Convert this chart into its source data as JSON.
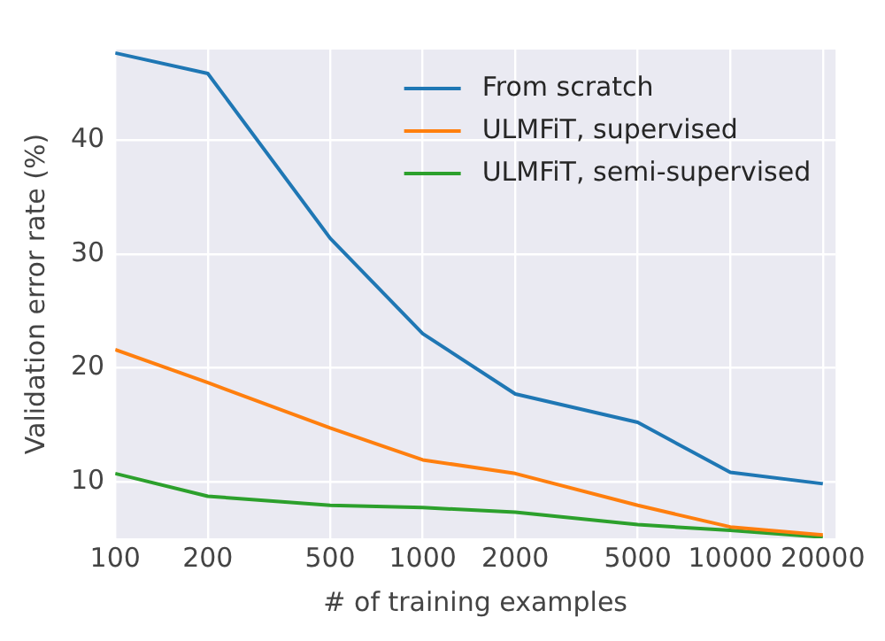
{
  "chart_data": {
    "type": "line",
    "xlabel": "# of training examples",
    "ylabel": "Validation error rate (%)",
    "x": [
      100,
      200,
      500,
      1000,
      2000,
      5000,
      10000,
      20000
    ],
    "series": [
      {
        "name": "From scratch",
        "color": "#1f77b4",
        "values": [
          47.7,
          45.9,
          31.4,
          23,
          17.7,
          15.2,
          10.8,
          9.8
        ]
      },
      {
        "name": "ULMFiT, supervised",
        "color": "#ff7f0e",
        "values": [
          21.6,
          18.7,
          14.7,
          11.9,
          10.7,
          7.9,
          6.0,
          5.3
        ]
      },
      {
        "name": "ULMFiT, semi-supervised",
        "color": "#2ca02c",
        "values": [
          10.7,
          8.7,
          7.9,
          7.7,
          7.3,
          6.2,
          5.7,
          5.1
        ]
      }
    ],
    "log": "x",
    "xlim": [
      100,
      22000
    ],
    "xticks": [
      100,
      200,
      500,
      1000,
      2000,
      5000,
      10000,
      20000
    ],
    "ylim": [
      5,
      48
    ],
    "yticks": [
      10,
      20,
      30,
      40
    ],
    "grid": true,
    "legend": "top right",
    "marker": "none",
    "line_style": "solid"
  }
}
